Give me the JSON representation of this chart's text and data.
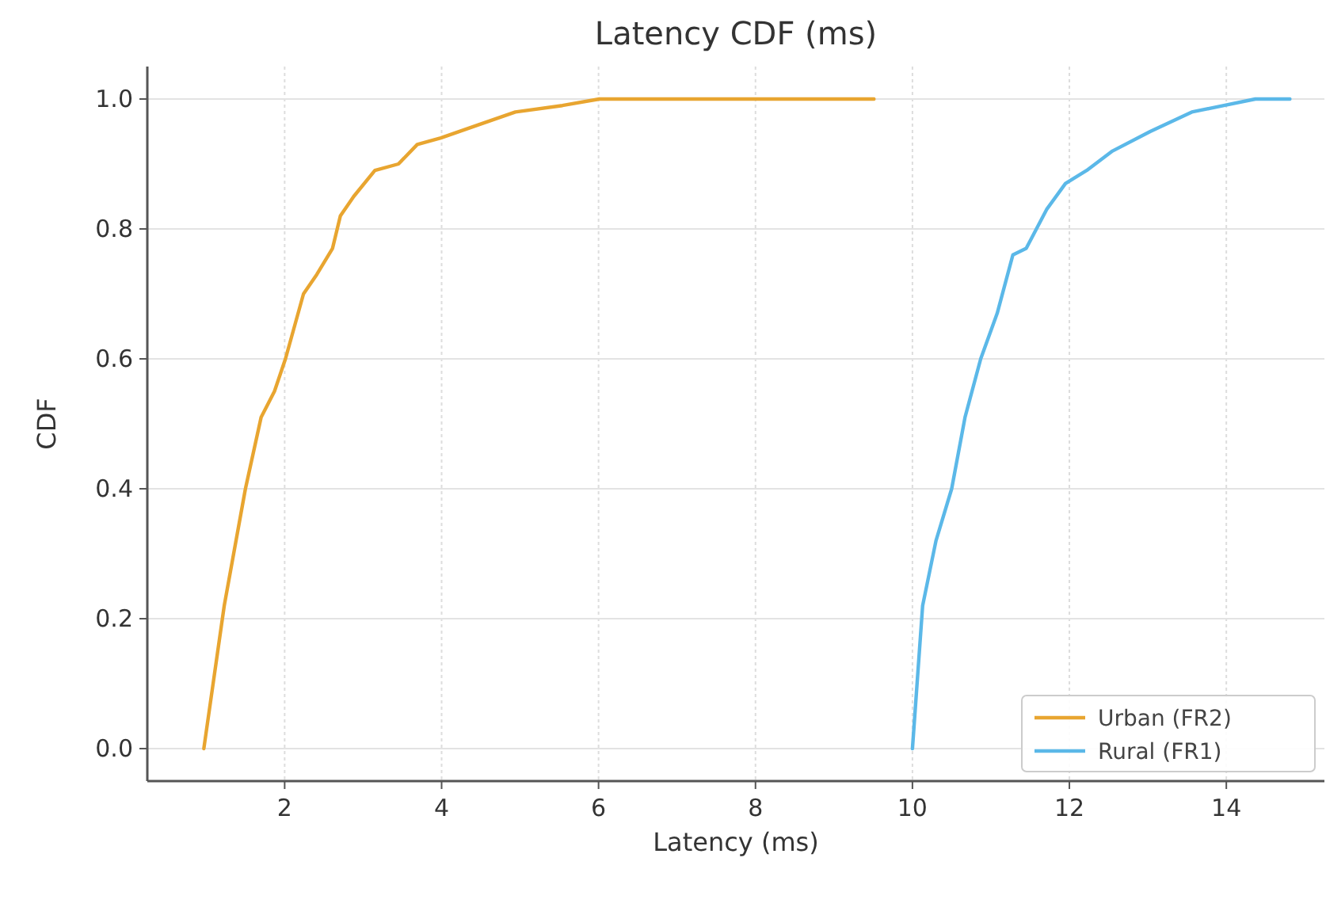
{
  "chart_data": {
    "type": "line",
    "title": "Latency CDF (ms)",
    "xlabel": "Latency (ms)",
    "ylabel": "CDF",
    "xlim": [
      0.25,
      15.25
    ],
    "xticks": [
      2,
      4,
      6,
      8,
      10,
      12,
      14
    ],
    "ylim": [
      -0.05,
      1.05
    ],
    "yticks": [
      {
        "value": 0,
        "label": "0.0"
      },
      {
        "value": 0.2,
        "label": "0.2"
      },
      {
        "value": 0.4,
        "label": "0.4"
      },
      {
        "value": 0.6,
        "label": "0.6"
      },
      {
        "value": 0.8,
        "label": "0.8"
      },
      {
        "value": 1,
        "label": "1.0"
      }
    ],
    "grid": true,
    "legend": "bottom right",
    "line_style": "solid",
    "marker": "none",
    "series": [
      {
        "name": "Urban (FR2)",
        "color": "#e8a530",
        "x": [
          0.97,
          1.23,
          1.5,
          1.7,
          1.87,
          2.01,
          2.24,
          2.41,
          2.61,
          2.71,
          2.88,
          3.15,
          3.45,
          3.69,
          3.99,
          4.46,
          4.94,
          5.54,
          6.01,
          9.51
        ],
        "values": [
          0,
          0.22,
          0.4,
          0.51,
          0.55,
          0.6,
          0.7,
          0.73,
          0.77,
          0.82,
          0.85,
          0.89,
          0.9,
          0.93,
          0.94,
          0.96,
          0.98,
          0.99,
          1.0,
          1.0
        ]
      },
      {
        "name": "Rural (FR1)",
        "color": "#5bb8e8",
        "x": [
          10.0,
          10.13,
          10.3,
          10.5,
          10.67,
          10.87,
          11.08,
          11.28,
          11.45,
          11.71,
          11.95,
          12.22,
          12.55,
          13.03,
          13.56,
          13.97,
          14.37,
          14.81
        ],
        "values": [
          0,
          0.22,
          0.32,
          0.4,
          0.51,
          0.6,
          0.67,
          0.76,
          0.77,
          0.83,
          0.87,
          0.89,
          0.92,
          0.95,
          0.98,
          0.99,
          1.0,
          1.0
        ]
      }
    ]
  }
}
